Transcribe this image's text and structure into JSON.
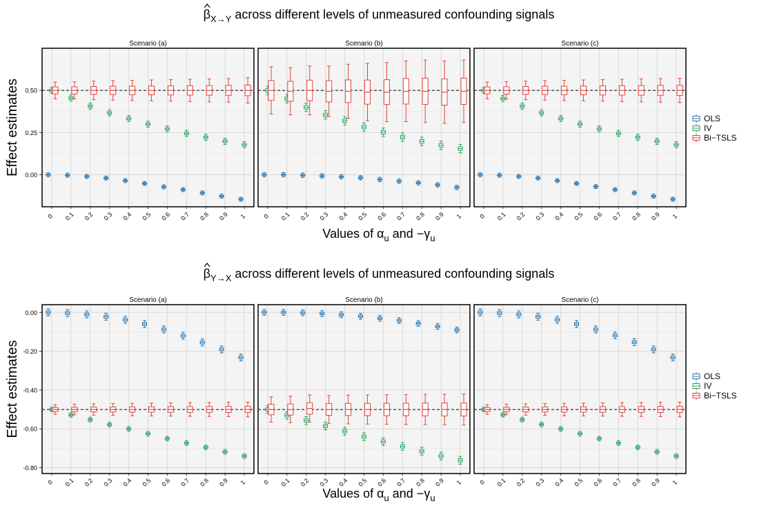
{
  "legend": {
    "entries": [
      {
        "name": "OLS",
        "color": "#2878b5"
      },
      {
        "name": "IV",
        "color": "#2ca25f"
      },
      {
        "name": "Bi−TSLS",
        "color": "#e0433b"
      }
    ]
  },
  "chart_data": [
    {
      "type": "box",
      "title_main": "across different levels of unmeasured confounding signals",
      "title_symbol": "β",
      "title_subscript": "X→Y",
      "ylabel": "Effect estimates",
      "xlabel_prefix": "Values of α",
      "xlabel_middle": " and −γ",
      "xlabel_subscript": "u",
      "ylim": [
        -0.19,
        0.75
      ],
      "y_ticks": [
        0.0,
        0.25,
        0.5
      ],
      "y_tick_labels": [
        "0.00",
        "0.25",
        "0.50"
      ],
      "reference_line": 0.5,
      "categories": [
        "0",
        "0.1",
        "0.2",
        "0.3",
        "0.4",
        "0.5",
        "0.6",
        "0.7",
        "0.8",
        "0.9",
        "1"
      ],
      "panels": [
        {
          "title": "Scenario (a)",
          "series": [
            {
              "name": "OLS",
              "median": [
                0.0,
                -0.003,
                -0.01,
                -0.02,
                -0.035,
                -0.052,
                -0.072,
                -0.088,
                -0.108,
                -0.127,
                -0.145
              ],
              "spread": 0.012
            },
            {
              "name": "IV",
              "median": [
                0.5,
                0.455,
                0.407,
                0.367,
                0.333,
                0.3,
                0.272,
                0.245,
                0.222,
                0.198,
                0.178
              ],
              "spread": 0.018
            },
            {
              "name": "Bi−TSLS",
              "median": [
                0.5,
                0.5,
                0.5,
                0.5,
                0.5,
                0.5,
                0.5,
                0.5,
                0.5,
                0.5,
                0.5
              ],
              "spread": [
                0.05,
                0.05,
                0.055,
                0.058,
                0.06,
                0.062,
                0.064,
                0.066,
                0.068,
                0.07,
                0.075
              ]
            }
          ]
        },
        {
          "title": "Scenario (b)",
          "series": [
            {
              "name": "OLS",
              "median": [
                0.0,
                0.0,
                -0.003,
                -0.007,
                -0.012,
                -0.018,
                -0.028,
                -0.038,
                -0.048,
                -0.06,
                -0.075
              ],
              "spread": 0.013
            },
            {
              "name": "IV",
              "median": [
                0.5,
                0.45,
                0.4,
                0.355,
                0.32,
                0.283,
                0.252,
                0.223,
                0.198,
                0.175,
                0.155
              ],
              "spread": 0.025
            },
            {
              "name": "Bi−TSLS",
              "median": [
                0.5,
                0.495,
                0.5,
                0.495,
                0.495,
                0.49,
                0.49,
                0.495,
                0.495,
                0.49,
                0.495
              ],
              "spread": [
                0.14,
                0.14,
                0.145,
                0.15,
                0.16,
                0.17,
                0.175,
                0.18,
                0.185,
                0.185,
                0.185
              ]
            }
          ]
        },
        {
          "title": "Scenario (c)",
          "series": [
            {
              "name": "OLS",
              "median": [
                0.0,
                -0.003,
                -0.01,
                -0.02,
                -0.035,
                -0.052,
                -0.07,
                -0.088,
                -0.108,
                -0.127,
                -0.145
              ],
              "spread": 0.012
            },
            {
              "name": "IV",
              "median": [
                0.5,
                0.452,
                0.407,
                0.367,
                0.333,
                0.3,
                0.272,
                0.245,
                0.222,
                0.198,
                0.178
              ],
              "spread": 0.018
            },
            {
              "name": "Bi−TSLS",
              "median": [
                0.5,
                0.5,
                0.5,
                0.5,
                0.5,
                0.5,
                0.5,
                0.5,
                0.5,
                0.5,
                0.5
              ],
              "spread": [
                0.05,
                0.052,
                0.055,
                0.058,
                0.06,
                0.062,
                0.064,
                0.066,
                0.068,
                0.07,
                0.072
              ]
            }
          ]
        }
      ]
    },
    {
      "type": "box",
      "title_main": "across different levels of unmeasured confounding signals",
      "title_symbol": "β",
      "title_subscript": "Y→X",
      "ylabel": "Effect estimates",
      "xlabel_prefix": "Values of α",
      "xlabel_middle": " and −γ",
      "xlabel_subscript": "u",
      "ylim": [
        -0.83,
        0.04
      ],
      "y_ticks": [
        0.0,
        -0.2,
        -0.4,
        -0.6,
        -0.8
      ],
      "y_tick_labels": [
        "0.00",
        "-0.20",
        "-0.40",
        "-0.60",
        "-0.80"
      ],
      "reference_line": -0.5,
      "categories": [
        "0",
        "0.1",
        "0.2",
        "0.3",
        "0.4",
        "0.5",
        "0.6",
        "0.7",
        "0.8",
        "0.9",
        "1"
      ],
      "panels": [
        {
          "title": "Scenario (a)",
          "series": [
            {
              "name": "OLS",
              "median": [
                0.0,
                -0.003,
                -0.01,
                -0.022,
                -0.038,
                -0.06,
                -0.088,
                -0.12,
                -0.155,
                -0.19,
                -0.232
              ],
              "spread": 0.018
            },
            {
              "name": "IV",
              "median": [
                -0.5,
                -0.528,
                -0.552,
                -0.578,
                -0.6,
                -0.625,
                -0.65,
                -0.673,
                -0.695,
                -0.718,
                -0.74
              ],
              "spread": 0.012
            },
            {
              "name": "Bi−TSLS",
              "median": [
                -0.5,
                -0.5,
                -0.5,
                -0.5,
                -0.5,
                -0.5,
                -0.5,
                -0.5,
                -0.5,
                -0.5,
                -0.5
              ],
              "spread": [
                0.025,
                0.027,
                0.029,
                0.031,
                0.032,
                0.033,
                0.034,
                0.035,
                0.036,
                0.037,
                0.038
              ]
            }
          ]
        },
        {
          "title": "Scenario (b)",
          "series": [
            {
              "name": "OLS",
              "median": [
                0.0,
                0.0,
                -0.002,
                -0.006,
                -0.012,
                -0.02,
                -0.03,
                -0.042,
                -0.057,
                -0.072,
                -0.09
              ],
              "spread": 0.015
            },
            {
              "name": "IV",
              "median": [
                -0.5,
                -0.53,
                -0.557,
                -0.585,
                -0.612,
                -0.64,
                -0.665,
                -0.69,
                -0.715,
                -0.74,
                -0.762
              ],
              "spread": 0.02
            },
            {
              "name": "Bi−TSLS",
              "median": [
                -0.5,
                -0.5,
                -0.495,
                -0.5,
                -0.5,
                -0.5,
                -0.5,
                -0.5,
                -0.5,
                -0.5,
                -0.5
              ],
              "spread": [
                0.065,
                0.068,
                0.07,
                0.072,
                0.074,
                0.075,
                0.076,
                0.077,
                0.078,
                0.079,
                0.08
              ]
            }
          ]
        },
        {
          "title": "Scenario (c)",
          "series": [
            {
              "name": "OLS",
              "median": [
                0.0,
                -0.003,
                -0.01,
                -0.022,
                -0.038,
                -0.06,
                -0.088,
                -0.118,
                -0.153,
                -0.19,
                -0.232
              ],
              "spread": 0.018
            },
            {
              "name": "IV",
              "median": [
                -0.5,
                -0.527,
                -0.552,
                -0.577,
                -0.6,
                -0.625,
                -0.65,
                -0.673,
                -0.695,
                -0.718,
                -0.74
              ],
              "spread": 0.012
            },
            {
              "name": "Bi−TSLS",
              "median": [
                -0.5,
                -0.5,
                -0.5,
                -0.5,
                -0.5,
                -0.5,
                -0.5,
                -0.5,
                -0.5,
                -0.5,
                -0.5
              ],
              "spread": [
                0.025,
                0.027,
                0.029,
                0.031,
                0.032,
                0.033,
                0.034,
                0.035,
                0.036,
                0.037,
                0.038
              ]
            }
          ]
        }
      ]
    }
  ]
}
